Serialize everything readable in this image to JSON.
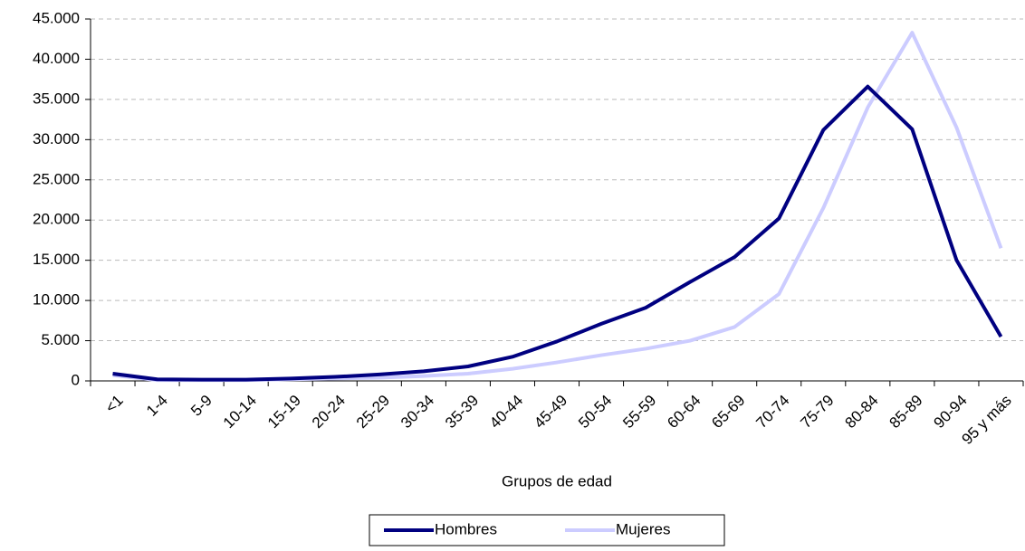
{
  "chart_data": {
    "type": "line",
    "x_label": "Grupos de edad",
    "categories": [
      "<1",
      "1-4",
      "5-9",
      "10-14",
      "15-19",
      "20-24",
      "25-29",
      "30-34",
      "35-39",
      "40-44",
      "45-49",
      "50-54",
      "55-59",
      "60-64",
      "65-69",
      "70-74",
      "75-79",
      "80-84",
      "85-89",
      "90-94",
      "95 y más"
    ],
    "series": [
      {
        "name": "Hombres",
        "color": "#000080",
        "values": [
          900,
          200,
          150,
          150,
          300,
          500,
          800,
          1200,
          1800,
          3000,
          4900,
          7100,
          9100,
          12300,
          15400,
          20200,
          31200,
          36600,
          31300,
          15000,
          5500
        ]
      },
      {
        "name": "Mujeres",
        "color": "#ccccff",
        "values": [
          700,
          100,
          100,
          100,
          200,
          300,
          400,
          600,
          900,
          1500,
          2300,
          3200,
          4000,
          5000,
          6700,
          10800,
          21500,
          34000,
          43300,
          31500,
          16500
        ]
      }
    ],
    "ylim": [
      0,
      45000
    ],
    "yticks": [
      0,
      {
        "value": 5000,
        "label": "5.000"
      },
      {
        "value": 10000,
        "label": "10.000"
      },
      {
        "value": 15000,
        "label": "15.000"
      },
      {
        "value": 20000,
        "label": "20.000"
      },
      {
        "value": 25000,
        "label": "25.000"
      },
      {
        "value": 30000,
        "label": "30.000"
      },
      {
        "value": 35000,
        "label": "35.000"
      },
      {
        "value": 40000,
        "label": "40.000"
      },
      {
        "value": 45000,
        "label": "45.000"
      }
    ],
    "grid": true,
    "legend": "bottom"
  }
}
